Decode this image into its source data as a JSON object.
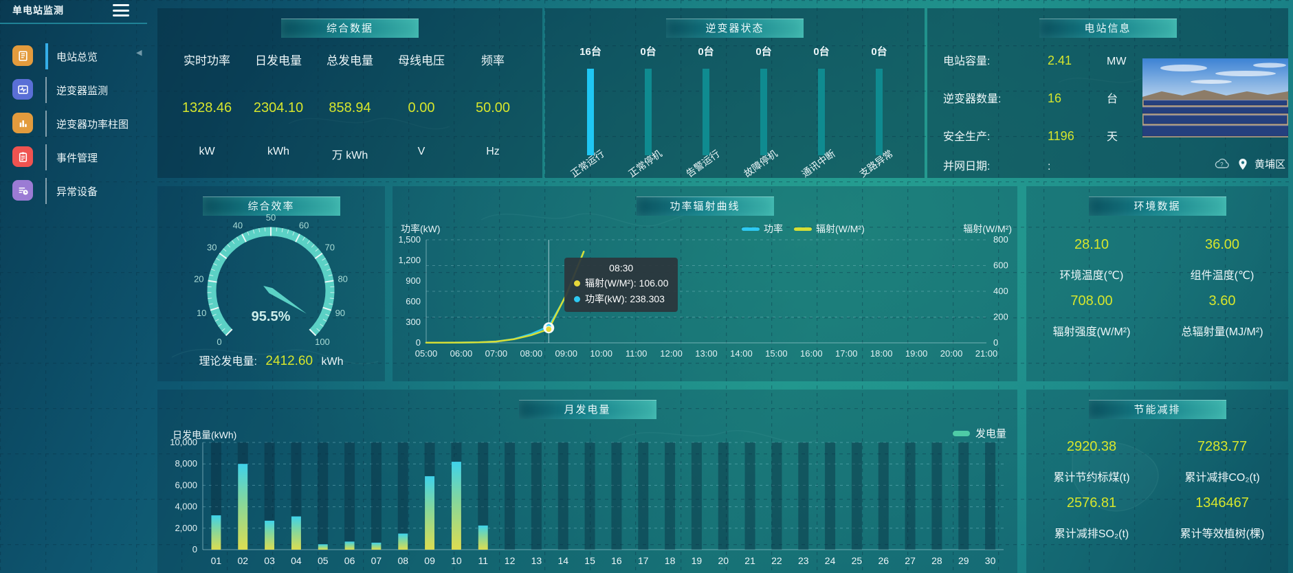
{
  "header": {
    "title": "单电站监测"
  },
  "theme": {
    "accent": "#d7e62c",
    "highlight_bar": "#1fc7f4",
    "bar_teal": "#0f8b90",
    "gauge_color": "#5bd1c5",
    "power_color": "#2ec9f2",
    "radiation_color": "#d6de35"
  },
  "sidebar": {
    "items": [
      {
        "label": "电站总览",
        "active": true
      },
      {
        "label": "逆变器监测",
        "active": false
      },
      {
        "label": "逆变器功率柱图",
        "active": false
      },
      {
        "label": "事件管理",
        "active": false
      },
      {
        "label": "异常设备",
        "active": false
      }
    ]
  },
  "summary": {
    "title": "综合数据",
    "metrics": [
      {
        "label": "实时功率",
        "value": "1328.46",
        "unit": "kW"
      },
      {
        "label": "日发电量",
        "value": "2304.10",
        "unit": "kWh"
      },
      {
        "label": "总发电量",
        "value": "858.94",
        "unit": "万 kWh"
      },
      {
        "label": "母线电压",
        "value": "0.00",
        "unit": "V"
      },
      {
        "label": "频率",
        "value": "50.00",
        "unit": "Hz"
      }
    ]
  },
  "inverter_status": {
    "title": "逆变器状态",
    "bars": [
      {
        "count": "16台",
        "label": "正常运行",
        "highlight": true
      },
      {
        "count": "0台",
        "label": "正常停机",
        "highlight": false
      },
      {
        "count": "0台",
        "label": "告警运行",
        "highlight": false
      },
      {
        "count": "0台",
        "label": "故障停机",
        "highlight": false
      },
      {
        "count": "0台",
        "label": "通讯中断",
        "highlight": false
      },
      {
        "count": "0台",
        "label": "支路异常",
        "highlight": false
      }
    ]
  },
  "station_info": {
    "title": "电站信息",
    "rows": [
      {
        "label": "电站容量:",
        "value": "2.41",
        "unit": "MW"
      },
      {
        "label": "逆变器数量:",
        "value": "16",
        "unit": "台"
      },
      {
        "label": "安全生产:",
        "value": "1196",
        "unit": "天"
      },
      {
        "label": "并网日期:",
        "value": ":",
        "unit": ""
      }
    ],
    "location": "黄埔区"
  },
  "efficiency": {
    "title": "综合效率",
    "footer_label": "理论发电量:",
    "footer_value": "2412.60",
    "footer_unit": "kWh"
  },
  "power_curve": {
    "title": "功率辐射曲线",
    "left_axis_title": "功率(kW)",
    "right_axis_title": "辐射(W/M²)",
    "legend": [
      {
        "name": "功率",
        "color": "#2ec9f2"
      },
      {
        "name": "辐射(W/M²)",
        "color": "#d6de35"
      }
    ]
  },
  "environment": {
    "title": "环境数据",
    "metrics": [
      {
        "value": "28.10",
        "label": "环境温度(℃)"
      },
      {
        "value": "36.00",
        "label": "组件温度(℃)"
      },
      {
        "value": "708.00",
        "label": "辐射强度(W/M²)"
      },
      {
        "value": "3.60",
        "label": "总辐射量(MJ/M²)"
      }
    ]
  },
  "monthly": {
    "title": "月发电量",
    "ylabel": "日发电量(kWh)",
    "legend": "发电量"
  },
  "savings": {
    "title": "节能减排",
    "metrics": [
      {
        "value": "2920.38",
        "label": "累计节约标煤(t)"
      },
      {
        "value": "7283.77",
        "label": "累计减排CO₂(t)"
      },
      {
        "value": "2576.81",
        "label": "累计减排SO₂(t)"
      },
      {
        "value": "1346467",
        "label": "累计等效植树(棵)"
      }
    ]
  },
  "chart_data": [
    {
      "id": "efficiency_gauge",
      "type": "gauge",
      "title": "综合效率",
      "min": 0,
      "max": 100,
      "value": 95.5,
      "display": "95.5%",
      "tick_labels": [
        "0",
        "10",
        "20",
        "30",
        "40",
        "50",
        "60",
        "70",
        "80",
        "90",
        "100"
      ],
      "color": "#5bd1c5"
    },
    {
      "id": "power_radiation_curve",
      "type": "line",
      "title": "功率辐射曲线",
      "x_ticks": [
        "05:00",
        "06:00",
        "07:00",
        "08:00",
        "09:00",
        "10:00",
        "11:00",
        "12:00",
        "13:00",
        "14:00",
        "15:00",
        "16:00",
        "17:00",
        "18:00",
        "19:00",
        "20:00",
        "21:00"
      ],
      "x_range": [
        5,
        21
      ],
      "x": [
        5,
        5.5,
        6,
        6.5,
        7,
        7.5,
        8,
        8.5,
        9,
        9.5
      ],
      "series": [
        {
          "name": "功率",
          "color": "#2ec9f2",
          "axis": "left",
          "values": [
            2,
            2,
            4,
            8,
            20,
            55,
            130,
            238.3,
            690,
            1328
          ]
        },
        {
          "name": "辐射(W/M²)",
          "color": "#d6de35",
          "axis": "right",
          "values": [
            1,
            1,
            2,
            4,
            10,
            28,
            60,
            106,
            375,
            708
          ]
        }
      ],
      "left_axis": {
        "title": "功率(kW)",
        "min": 0,
        "max": 1500,
        "ticks": [
          "0",
          "300",
          "600",
          "900",
          "1,200",
          "1,500"
        ]
      },
      "right_axis": {
        "title": "辐射(W/M²)",
        "min": 0,
        "max": 800,
        "ticks": [
          "0",
          "200",
          "400",
          "600",
          "800"
        ]
      },
      "tooltip": {
        "x": 8.5,
        "title": "08:30",
        "items": [
          {
            "name": "辐射(W/M²)",
            "value": "106.00",
            "color": "#e6d83a"
          },
          {
            "name": "功率(kW)",
            "value": "238.303",
            "color": "#2ec9f2"
          }
        ]
      }
    },
    {
      "id": "monthly_generation",
      "type": "bar",
      "title": "月发电量",
      "ylabel": "日发电量(kWh)",
      "categories": [
        "01",
        "02",
        "03",
        "04",
        "05",
        "06",
        "07",
        "08",
        "09",
        "10",
        "11",
        "12",
        "13",
        "14",
        "15",
        "16",
        "17",
        "18",
        "19",
        "20",
        "21",
        "22",
        "23",
        "24",
        "25",
        "26",
        "27",
        "28",
        "29",
        "30"
      ],
      "values": [
        3200,
        8000,
        2700,
        3100,
        500,
        750,
        650,
        1500,
        6850,
        8200,
        2250,
        0,
        0,
        0,
        0,
        0,
        0,
        0,
        0,
        0,
        0,
        0,
        0,
        0,
        0,
        0,
        0,
        0,
        0,
        0
      ],
      "ylim": [
        0,
        10000
      ],
      "y_ticks": [
        "0",
        "2,000",
        "4,000",
        "6,000",
        "8,000",
        "10,000"
      ],
      "legend": "发电量",
      "bar_gradient": [
        "#3fd2ea",
        "#86d79b",
        "#dcdd51"
      ]
    }
  ]
}
